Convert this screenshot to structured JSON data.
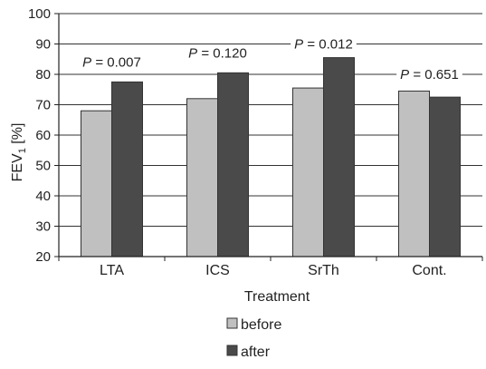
{
  "chart_data": {
    "type": "bar",
    "title": "",
    "xlabel": "Treatment",
    "ylabel_main": "FEV",
    "ylabel_sub": "1",
    "ylabel_unit": " [%]",
    "ylim": [
      20,
      100
    ],
    "yticks": [
      20,
      30,
      40,
      50,
      60,
      70,
      80,
      90,
      100
    ],
    "grid": true,
    "categories": [
      "LTA",
      "ICS",
      "SrTh",
      "Cont."
    ],
    "series": [
      {
        "name": "before",
        "values": [
          68,
          72,
          75.5,
          74.5
        ],
        "color": "#c0c0c0"
      },
      {
        "name": "after",
        "values": [
          77.5,
          80.5,
          85.5,
          72.5
        ],
        "color": "#4a4a4a"
      }
    ],
    "annotations": [
      {
        "category": "LTA",
        "label": "P",
        "text": " = 0.007",
        "y": 84
      },
      {
        "category": "ICS",
        "label": "P",
        "text": " = 0.120",
        "y": 87
      },
      {
        "category": "SrTh",
        "label": "P",
        "text": " = 0.012",
        "y": 90
      },
      {
        "category": "Cont.",
        "label": "P",
        "text": " = 0.651",
        "y": 80
      }
    ],
    "legend_position": "bottom"
  }
}
